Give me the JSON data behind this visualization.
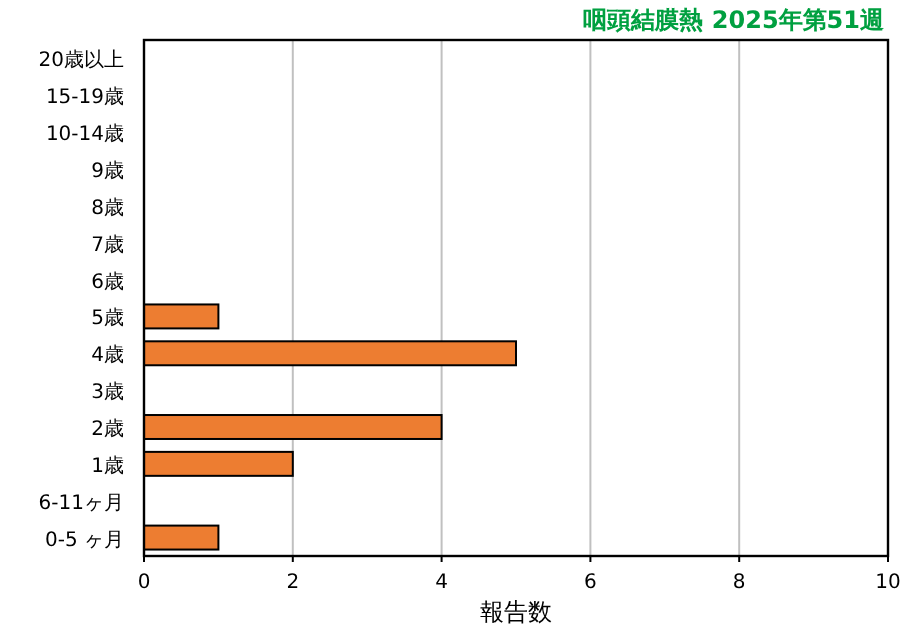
{
  "chart_data": {
    "type": "bar",
    "orientation": "horizontal",
    "title": "咽頭結膜熱 2025年第51週",
    "categories": [
      "20歳以上",
      "15-19歳",
      "10-14歳",
      "9歳",
      "8歳",
      "7歳",
      "6歳",
      "5歳",
      "4歳",
      "3歳",
      "2歳",
      "1歳",
      "6-11ヶ月",
      "0-5 ヶ月"
    ],
    "values": [
      0,
      0,
      0,
      0,
      0,
      0,
      0,
      1,
      5,
      0,
      4,
      2,
      0,
      1
    ],
    "color": "#ed7d31",
    "xlim": [
      0,
      10
    ],
    "xticks": [
      0,
      2,
      4,
      6,
      8,
      10
    ],
    "xlabel": "報告数",
    "grid": "x"
  }
}
